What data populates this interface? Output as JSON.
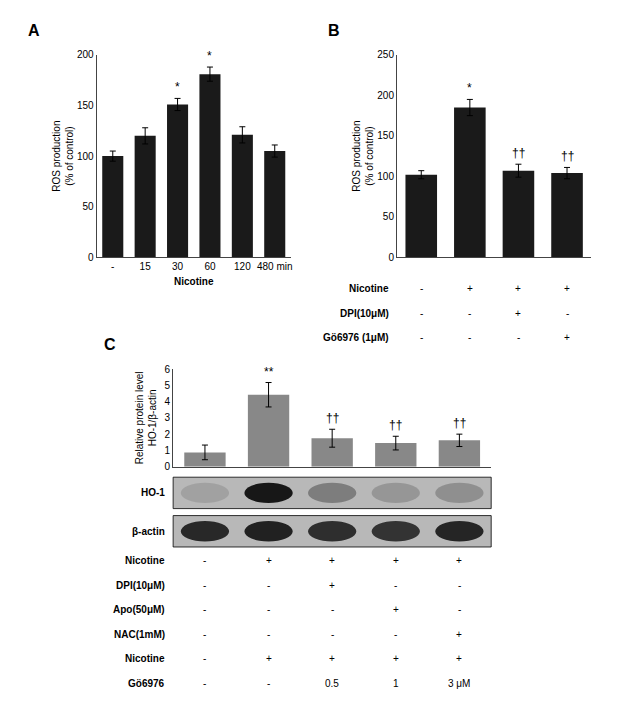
{
  "chart_data": [
    {
      "type": "bar",
      "title": "A",
      "categories": [
        "-",
        "15",
        "30",
        "60",
        "120",
        "480 min"
      ],
      "values": [
        100,
        120,
        151,
        181,
        121,
        105
      ],
      "errors": [
        5,
        8,
        6,
        7,
        8,
        6
      ],
      "annotations": [
        {
          "index": 2,
          "text": "*"
        },
        {
          "index": 3,
          "text": "*"
        }
      ],
      "color": "#1a1a1a",
      "ylabel": "ROS production\n(% of control)",
      "xlabel": "Nicotine",
      "ylim": [
        0,
        200
      ],
      "yticks": [
        0,
        50,
        100,
        150,
        200
      ],
      "grid": false
    },
    {
      "type": "bar",
      "title": "B",
      "categories": [
        null,
        null,
        null,
        null
      ],
      "values": [
        102,
        185,
        107,
        104
      ],
      "errors": [
        5,
        10,
        8,
        7
      ],
      "annotations": [
        {
          "index": 1,
          "text": "*"
        },
        {
          "index": 2,
          "text": "††"
        },
        {
          "index": 3,
          "text": "††"
        }
      ],
      "color": "#1a1a1a",
      "ylabel": "ROS production\n(% of control)",
      "ylim": [
        0,
        250
      ],
      "yticks": [
        0,
        50,
        100,
        150,
        200,
        250
      ],
      "grid": false,
      "tick_labels": "y",
      "table": {
        "row_labels": [
          "Nicotine",
          "DPI(10μM)",
          "Gö6976 (1μM)"
        ],
        "rows": [
          [
            "-",
            "+",
            "+",
            "+"
          ],
          [
            "-",
            "-",
            "+",
            "-"
          ],
          [
            "-",
            "-",
            "-",
            "+"
          ]
        ]
      }
    },
    {
      "type": "bar",
      "title": "C",
      "categories": [
        null,
        null,
        null,
        null,
        null
      ],
      "values": [
        0.88,
        4.42,
        1.75,
        1.45,
        1.62
      ],
      "errors": [
        0.45,
        0.75,
        0.55,
        0.42,
        0.38
      ],
      "annotations": [
        {
          "index": 1,
          "text": "**"
        },
        {
          "index": 2,
          "text": "††"
        },
        {
          "index": 3,
          "text": "††"
        },
        {
          "index": 4,
          "text": "††"
        }
      ],
      "color": "#888888",
      "ylabel": "Relative protein level\nHO-1/β-actin",
      "ylim": [
        0,
        6
      ],
      "yticks": [
        0,
        1,
        2,
        3,
        4,
        5,
        6
      ],
      "grid": false,
      "tick_labels": "y",
      "blots": [
        {
          "label": "HO-1",
          "bands": [
            0.12,
            0.88,
            0.32,
            0.18,
            0.22
          ]
        },
        {
          "label": "β-actin",
          "bands": [
            0.78,
            0.82,
            0.75,
            0.72,
            0.8
          ]
        }
      ],
      "table": {
        "row_labels": [
          "Nicotine",
          "DPI(10μM)",
          "Apo(50μM)",
          "NAC(1mM)",
          "Nicotine",
          "Gö6976"
        ],
        "rows": [
          [
            "-",
            "+",
            "+",
            "+",
            "+"
          ],
          [
            "-",
            "-",
            "+",
            "-",
            "-"
          ],
          [
            "-",
            "-",
            "-",
            "+",
            "-"
          ],
          [
            "-",
            "-",
            "-",
            "-",
            "+"
          ],
          [
            "-",
            "+",
            "+",
            "+",
            "+"
          ],
          [
            "-",
            "-",
            "0.5",
            "1",
            "3 μM"
          ]
        ]
      }
    }
  ]
}
